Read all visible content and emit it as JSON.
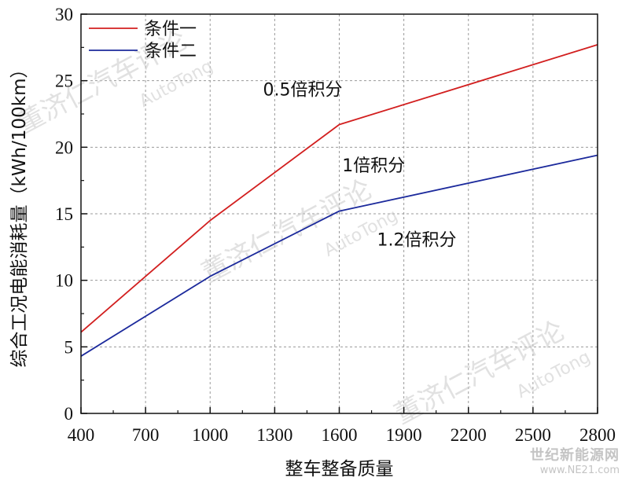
{
  "chart_data": {
    "type": "line",
    "xlabel": "整车整备质量",
    "ylabel": "综合工况电能消耗量（kWh/100km）",
    "x_ticks": [
      400,
      700,
      1000,
      1300,
      1600,
      1900,
      2200,
      2500,
      2800
    ],
    "y_ticks": [
      0,
      5,
      10,
      15,
      20,
      25,
      30
    ],
    "xlim": [
      400,
      2800
    ],
    "ylim": [
      0,
      30
    ],
    "grid": true,
    "legend_position": "top-left",
    "series": [
      {
        "name": "条件一",
        "color": "#d21f1f",
        "x": [
          400,
          1000,
          1600,
          2800
        ],
        "y": [
          6.1,
          14.5,
          21.7,
          27.7
        ]
      },
      {
        "name": "条件二",
        "color": "#1c2a9c",
        "x": [
          400,
          1000,
          1600,
          2800
        ],
        "y": [
          4.3,
          10.3,
          15.2,
          19.4
        ]
      }
    ],
    "annotations": [
      {
        "text": "0.5倍积分",
        "x": 1430,
        "y": 23.9
      },
      {
        "text": "1倍积分",
        "x": 1760,
        "y": 18.2
      },
      {
        "text": "1.2倍积分",
        "x": 1960,
        "y": 12.6
      }
    ]
  },
  "watermarks": {
    "brand_cn": "董济仁汽车评论",
    "brand_en": "AutoTong",
    "site_cn": "世纪新能源网",
    "site_url": "www.NE21.com"
  }
}
